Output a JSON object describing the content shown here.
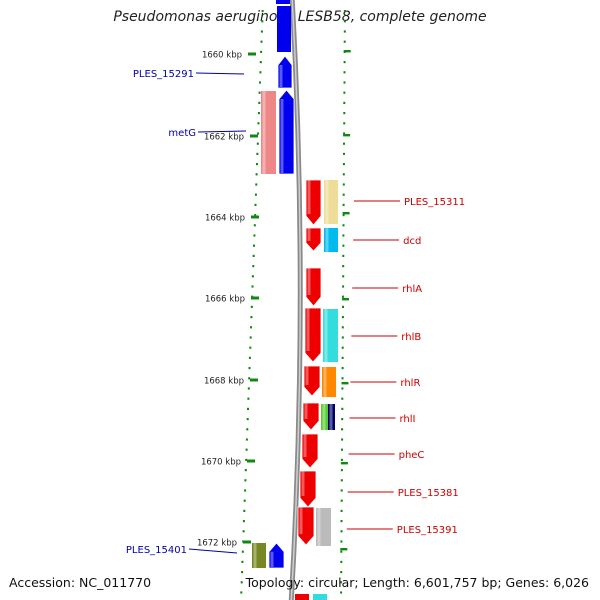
{
  "title": "Pseudomonas aeruginosa LESB58, complete genome",
  "footer": {
    "accession": "Accession: NC_011770",
    "topology": "Topology: circular; Length: 6,601,757 bp; Genes: 6,026"
  },
  "axis": {
    "unit": "kbp",
    "ticks": [
      "1660 kbp",
      "1662 kbp",
      "1664 kbp",
      "1666 kbp",
      "1668 kbp",
      "1670 kbp",
      "1672 kbp"
    ]
  },
  "strands": {
    "reverse": {
      "color": "#0000cc",
      "genes": [
        {
          "name": "PLES_15291",
          "color": "#0000ee"
        },
        {
          "name": "metG",
          "color": "#0000ee"
        },
        {
          "name": "PLES_15401",
          "color": "#0000ee"
        }
      ]
    },
    "forward": {
      "color": "#cc0000",
      "genes": [
        {
          "name": "PLES_15311",
          "color": "#ee0000"
        },
        {
          "name": "dcd",
          "color": "#ee0000"
        },
        {
          "name": "rhlA",
          "color": "#ee0000"
        },
        {
          "name": "rhlB",
          "color": "#ee0000"
        },
        {
          "name": "rhlR",
          "color": "#ee0000"
        },
        {
          "name": "rhlI",
          "color": "#ee0000"
        },
        {
          "name": "pheC",
          "color": "#ee0000"
        },
        {
          "name": "PLES_15381",
          "color": "#ee0000"
        },
        {
          "name": "PLES_15391",
          "color": "#ee0000"
        }
      ]
    }
  },
  "cog_colors": [
    "#ee8888",
    "#eedd99",
    "#00bbee",
    "#33dddd",
    "#ff8800",
    "#55cc33",
    "#000066",
    "#bbbbbb",
    "#778822"
  ]
}
